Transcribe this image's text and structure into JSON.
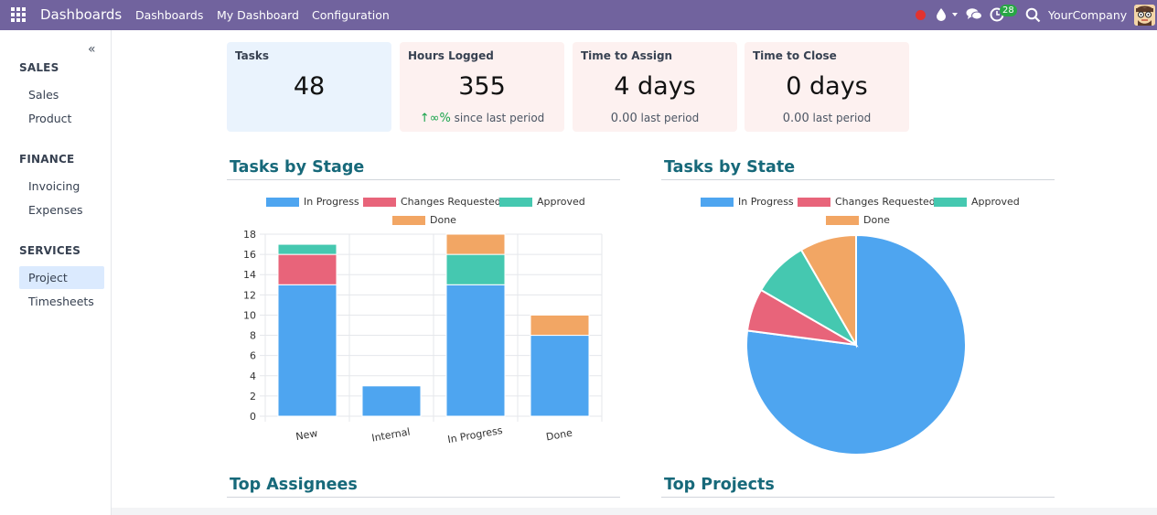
{
  "navbar": {
    "brand": "Dashboards",
    "menu": [
      "Dashboards",
      "My Dashboard",
      "Configuration"
    ],
    "activity_count": "28",
    "company": "YourCompany"
  },
  "sidebar": {
    "sections": [
      {
        "title": "SALES",
        "items": [
          "Sales",
          "Product"
        ]
      },
      {
        "title": "FINANCE",
        "items": [
          "Invoicing",
          "Expenses"
        ]
      },
      {
        "title": "SERVICES",
        "items": [
          "Project",
          "Timesheets"
        ]
      }
    ],
    "active_item": "Project"
  },
  "kpis": [
    {
      "title": "Tasks",
      "value": "48",
      "sub_num": "",
      "sub_text": ""
    },
    {
      "title": "Hours Logged",
      "value": "355",
      "sub_num": "∞%",
      "sub_text": "since last period"
    },
    {
      "title": "Time to Assign",
      "value": "4 days",
      "sub_num": "0.00",
      "sub_text": "last period"
    },
    {
      "title": "Time to Close",
      "value": "0 days",
      "sub_num": "0.00",
      "sub_text": "last period"
    }
  ],
  "colors": {
    "in_progress": "#4ea5f0",
    "changes_requested": "#e8647a",
    "approved": "#45c8b0",
    "done": "#f2a664",
    "heading": "#17697a",
    "navbar": "#71639e"
  },
  "sections": {
    "tasks_by_stage": "Tasks by Stage",
    "tasks_by_state": "Tasks by State",
    "top_assignees": "Top Assignees",
    "top_projects": "Top Projects"
  },
  "chart_data": [
    {
      "type": "bar",
      "title": "Tasks by Stage",
      "stacked": true,
      "categories": [
        "New",
        "Internal",
        "In Progress",
        "Done"
      ],
      "series": [
        {
          "name": "In Progress",
          "values": [
            13,
            3,
            13,
            8
          ]
        },
        {
          "name": "Changes Requested",
          "values": [
            3,
            0,
            0,
            0
          ]
        },
        {
          "name": "Approved",
          "values": [
            1,
            0,
            3,
            0
          ]
        },
        {
          "name": "Done",
          "values": [
            0,
            0,
            2,
            2
          ]
        }
      ],
      "ylim": [
        0,
        18
      ],
      "yticks": [
        0,
        2,
        4,
        6,
        8,
        10,
        12,
        14,
        16,
        18
      ],
      "grid": true,
      "legend": "top"
    },
    {
      "type": "pie",
      "title": "Tasks by State",
      "labels": [
        "In Progress",
        "Changes Requested",
        "Approved",
        "Done"
      ],
      "values": [
        37,
        3,
        4,
        4
      ],
      "legend": "top"
    }
  ]
}
